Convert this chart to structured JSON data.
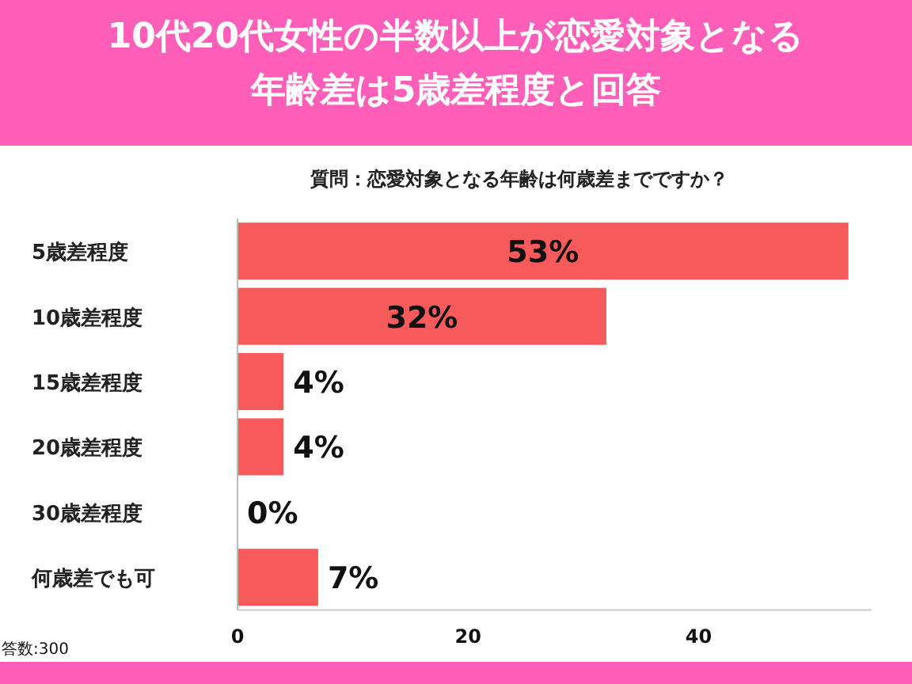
{
  "chart_data": {
    "type": "bar",
    "orientation": "horizontal",
    "title": "10代20代女性の半数以上が恋愛対象となる年齢差は5歳差程度と回答",
    "subtitle": "質問：恋愛対象となる年齢は何歳差までですか？",
    "categories": [
      "5歳差程度",
      "10歳差程度",
      "15歳差程度",
      "20歳差程度",
      "30歳差程度",
      "何歳差でも可"
    ],
    "values": [
      53,
      32,
      4,
      4,
      0,
      7
    ],
    "value_labels": [
      "53%",
      "32%",
      "4%",
      "4%",
      "0%",
      "7%"
    ],
    "color": "#f65a5a",
    "xlim": [
      0,
      55
    ],
    "xticks": [
      0,
      20,
      40
    ],
    "grid": false,
    "annotations": [
      "答数:300"
    ]
  }
}
